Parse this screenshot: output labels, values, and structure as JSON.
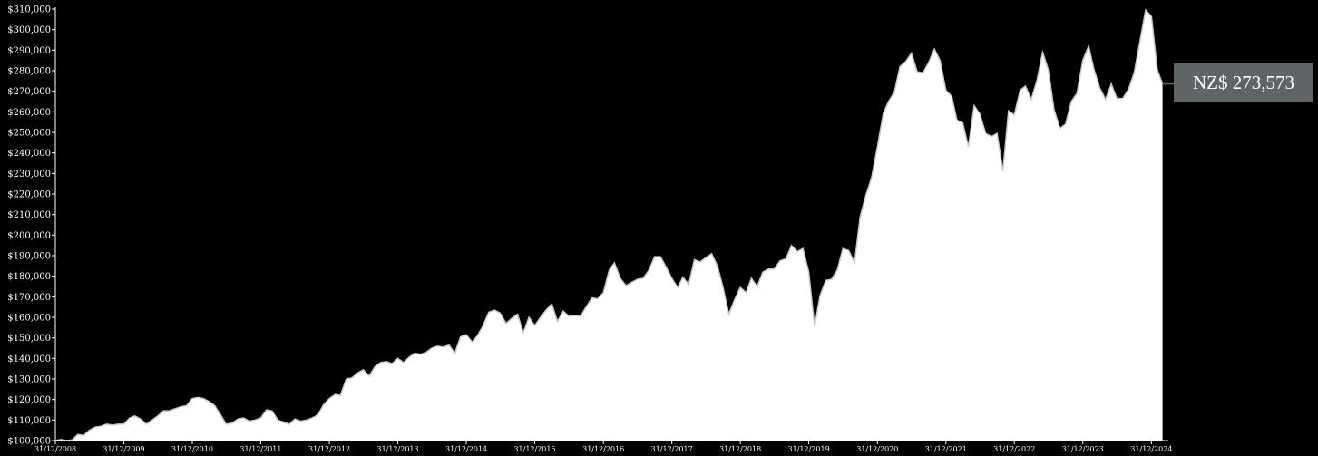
{
  "colors": {
    "background": "#000000",
    "area_fill": "#ffffff",
    "area_stroke": "#c8c8c8",
    "axis": "#ffffff",
    "callout_bg": "#5f6566",
    "callout_text": "#ffffff"
  },
  "callout": {
    "label": "NZ$ 273,573"
  },
  "chart_data": {
    "type": "area",
    "title": "",
    "xlabel": "",
    "ylabel": "",
    "ylim": [
      100000,
      310000
    ],
    "y_ticks": [
      100000,
      110000,
      120000,
      130000,
      140000,
      150000,
      160000,
      170000,
      180000,
      190000,
      200000,
      210000,
      220000,
      230000,
      240000,
      250000,
      260000,
      270000,
      280000,
      290000,
      300000,
      310000
    ],
    "y_tick_labels": [
      "$100,000",
      "$110,000",
      "$120,000",
      "$130,000",
      "$140,000",
      "$150,000",
      "$160,000",
      "$170,000",
      "$180,000",
      "$190,000",
      "$200,000",
      "$210,000",
      "$220,000",
      "$230,000",
      "$240,000",
      "$250,000",
      "$260,000",
      "$270,000",
      "$280,000",
      "$290,000",
      "$300,000",
      "$310,000"
    ],
    "xlim": [
      "2008-12-31",
      "2025-03-31"
    ],
    "x_ticks": [
      "2008-12-31",
      "2009-12-31",
      "2010-12-31",
      "2011-12-31",
      "2012-12-31",
      "2013-12-31",
      "2014-12-31",
      "2015-12-31",
      "2016-12-31",
      "2017-12-31",
      "2018-12-31",
      "2019-12-31",
      "2020-12-31",
      "2021-12-31",
      "2022-12-31",
      "2023-12-31",
      "2024-12-31"
    ],
    "x_tick_labels": [
      "31/12/2008",
      "31/12/2009",
      "31/12/2010",
      "31/12/2011",
      "31/12/2012",
      "31/12/2013",
      "31/12/2014",
      "31/12/2015",
      "31/12/2016",
      "31/12/2017",
      "31/12/2018",
      "31/12/2019",
      "31/12/2020",
      "31/12/2021",
      "31/12/2022",
      "31/12/2023",
      "31/12/2024"
    ],
    "grid": false,
    "series": [
      {
        "points": [
          [
            "2008-12-31",
            100000
          ],
          [
            "2009-01-31",
            100500
          ],
          [
            "2009-02-28",
            100000
          ],
          [
            "2009-03-31",
            100300
          ],
          [
            "2009-04-30",
            103000
          ],
          [
            "2009-05-31",
            102500
          ],
          [
            "2009-06-30",
            105000
          ],
          [
            "2009-07-31",
            106500
          ],
          [
            "2009-08-31",
            107000
          ],
          [
            "2009-09-30",
            108000
          ],
          [
            "2009-10-31",
            107500
          ],
          [
            "2009-11-30",
            108000
          ],
          [
            "2009-12-31",
            108000
          ],
          [
            "2010-01-31",
            111000
          ],
          [
            "2010-02-28",
            112000
          ],
          [
            "2010-03-31",
            110500
          ],
          [
            "2010-04-30",
            108000
          ],
          [
            "2010-05-31",
            110000
          ],
          [
            "2010-06-30",
            112000
          ],
          [
            "2010-07-31",
            114500
          ],
          [
            "2010-08-31",
            114500
          ],
          [
            "2010-09-30",
            115500
          ],
          [
            "2010-10-31",
            116500
          ],
          [
            "2010-11-30",
            117000
          ],
          [
            "2010-12-31",
            120500
          ],
          [
            "2011-01-31",
            121000
          ],
          [
            "2011-02-28",
            120500
          ],
          [
            "2011-03-31",
            119000
          ],
          [
            "2011-04-30",
            117000
          ],
          [
            "2011-05-31",
            112500
          ],
          [
            "2011-06-30",
            108000
          ],
          [
            "2011-07-31",
            108500
          ],
          [
            "2011-08-31",
            110500
          ],
          [
            "2011-09-30",
            111000
          ],
          [
            "2011-10-31",
            109500
          ],
          [
            "2011-11-30",
            110000
          ],
          [
            "2011-12-31",
            111000
          ],
          [
            "2012-01-31",
            115000
          ],
          [
            "2012-02-29",
            114500
          ],
          [
            "2012-03-31",
            110000
          ],
          [
            "2012-04-30",
            109000
          ],
          [
            "2012-05-31",
            108000
          ],
          [
            "2012-06-30",
            110500
          ],
          [
            "2012-07-31",
            109500
          ],
          [
            "2012-08-31",
            110000
          ],
          [
            "2012-09-30",
            111000
          ],
          [
            "2012-10-31",
            112500
          ],
          [
            "2012-11-30",
            117500
          ],
          [
            "2012-12-31",
            120500
          ],
          [
            "2013-01-31",
            122500
          ],
          [
            "2013-02-28",
            122000
          ],
          [
            "2013-03-31",
            130000
          ],
          [
            "2013-04-30",
            130500
          ],
          [
            "2013-05-31",
            133000
          ],
          [
            "2013-06-30",
            134500
          ],
          [
            "2013-07-31",
            131500
          ],
          [
            "2013-08-31",
            136000
          ],
          [
            "2013-09-30",
            138000
          ],
          [
            "2013-10-31",
            138500
          ],
          [
            "2013-11-30",
            137500
          ],
          [
            "2013-12-31",
            140000
          ],
          [
            "2014-01-31",
            138000
          ],
          [
            "2014-02-28",
            140500
          ],
          [
            "2014-03-31",
            142500
          ],
          [
            "2014-04-30",
            142000
          ],
          [
            "2014-05-31",
            143000
          ],
          [
            "2014-06-30",
            145000
          ],
          [
            "2014-07-31",
            146000
          ],
          [
            "2014-08-31",
            145500
          ],
          [
            "2014-09-30",
            146500
          ],
          [
            "2014-10-31",
            142500
          ],
          [
            "2014-11-30",
            150500
          ],
          [
            "2014-12-31",
            151500
          ],
          [
            "2015-01-31",
            148000
          ],
          [
            "2015-02-28",
            151000
          ],
          [
            "2015-03-31",
            156000
          ],
          [
            "2015-04-30",
            162500
          ],
          [
            "2015-05-31",
            163500
          ],
          [
            "2015-06-30",
            162000
          ],
          [
            "2015-07-31",
            157000
          ],
          [
            "2015-08-31",
            159500
          ],
          [
            "2015-09-30",
            161500
          ],
          [
            "2015-10-31",
            152500
          ],
          [
            "2015-11-30",
            160000
          ],
          [
            "2015-12-31",
            156000
          ],
          [
            "2016-01-31",
            160000
          ],
          [
            "2016-02-29",
            163500
          ],
          [
            "2016-03-31",
            166500
          ],
          [
            "2016-04-30",
            158000
          ],
          [
            "2016-05-31",
            163000
          ],
          [
            "2016-06-30",
            160500
          ],
          [
            "2016-07-31",
            161000
          ],
          [
            "2016-08-31",
            160500
          ],
          [
            "2016-09-30",
            165000
          ],
          [
            "2016-10-31",
            169500
          ],
          [
            "2016-11-30",
            169000
          ],
          [
            "2016-12-31",
            172000
          ],
          [
            "2017-01-31",
            183000
          ],
          [
            "2017-02-28",
            186500
          ],
          [
            "2017-03-31",
            179000
          ],
          [
            "2017-04-30",
            175500
          ],
          [
            "2017-05-31",
            177000
          ],
          [
            "2017-06-30",
            178500
          ],
          [
            "2017-07-31",
            179000
          ],
          [
            "2017-08-31",
            183000
          ],
          [
            "2017-09-30",
            189500
          ],
          [
            "2017-10-31",
            189500
          ],
          [
            "2017-11-30",
            184500
          ],
          [
            "2017-12-31",
            179000
          ],
          [
            "2018-01-31",
            174500
          ],
          [
            "2018-02-28",
            179500
          ],
          [
            "2018-03-31",
            176000
          ],
          [
            "2018-04-30",
            188000
          ],
          [
            "2018-05-31",
            187000
          ],
          [
            "2018-06-30",
            189000
          ],
          [
            "2018-07-31",
            191000
          ],
          [
            "2018-08-31",
            185000
          ],
          [
            "2018-09-30",
            174500
          ],
          [
            "2018-10-31",
            161500
          ],
          [
            "2018-11-30",
            168500
          ],
          [
            "2018-12-31",
            174500
          ],
          [
            "2019-01-31",
            172000
          ],
          [
            "2019-02-28",
            179000
          ],
          [
            "2019-03-31",
            175000
          ],
          [
            "2019-04-30",
            182000
          ],
          [
            "2019-05-31",
            183500
          ],
          [
            "2019-06-30",
            183500
          ],
          [
            "2019-07-31",
            187500
          ],
          [
            "2019-08-31",
            188500
          ],
          [
            "2019-09-30",
            195000
          ],
          [
            "2019-10-31",
            192000
          ],
          [
            "2019-11-30",
            193500
          ],
          [
            "2019-12-31",
            182000
          ],
          [
            "2020-01-31",
            155500
          ],
          [
            "2020-02-29",
            170500
          ],
          [
            "2020-03-31",
            178000
          ],
          [
            "2020-04-30",
            178500
          ],
          [
            "2020-05-31",
            183000
          ],
          [
            "2020-06-30",
            193500
          ],
          [
            "2020-07-31",
            192500
          ],
          [
            "2020-08-31",
            186500
          ],
          [
            "2020-09-30",
            209000
          ],
          [
            "2020-10-31",
            219500
          ],
          [
            "2020-11-30",
            228000
          ],
          [
            "2020-12-31",
            243000
          ],
          [
            "2021-01-31",
            259000
          ],
          [
            "2021-02-28",
            265000
          ],
          [
            "2021-03-31",
            269500
          ],
          [
            "2021-04-30",
            282000
          ],
          [
            "2021-05-31",
            284500
          ],
          [
            "2021-06-30",
            288500
          ],
          [
            "2021-07-31",
            279500
          ],
          [
            "2021-08-31",
            279000
          ],
          [
            "2021-09-30",
            284000
          ],
          [
            "2021-10-31",
            290500
          ],
          [
            "2021-11-30",
            285000
          ],
          [
            "2021-12-31",
            270500
          ],
          [
            "2022-01-31",
            267500
          ],
          [
            "2022-02-28",
            256000
          ],
          [
            "2022-03-31",
            254500
          ],
          [
            "2022-04-30",
            243000
          ],
          [
            "2022-05-31",
            263000
          ],
          [
            "2022-06-30",
            259000
          ],
          [
            "2022-07-31",
            249500
          ],
          [
            "2022-08-31",
            248000
          ],
          [
            "2022-09-30",
            249500
          ],
          [
            "2022-10-31",
            231000
          ],
          [
            "2022-11-30",
            260500
          ],
          [
            "2022-12-31",
            258500
          ],
          [
            "2023-01-31",
            270500
          ],
          [
            "2023-02-28",
            272500
          ],
          [
            "2023-03-31",
            266000
          ],
          [
            "2023-04-30",
            275000
          ],
          [
            "2023-05-31",
            289000
          ],
          [
            "2023-06-30",
            280500
          ],
          [
            "2023-07-31",
            261000
          ],
          [
            "2023-08-31",
            252000
          ],
          [
            "2023-09-30",
            254000
          ],
          [
            "2023-10-31",
            265000
          ],
          [
            "2023-11-30",
            269000
          ],
          [
            "2023-12-31",
            285000
          ],
          [
            "2024-01-31",
            292000
          ],
          [
            "2024-02-29",
            280500
          ],
          [
            "2024-03-31",
            271500
          ],
          [
            "2024-04-30",
            266000
          ],
          [
            "2024-05-31",
            273500
          ],
          [
            "2024-06-30",
            266500
          ],
          [
            "2024-07-31",
            266500
          ],
          [
            "2024-08-31",
            271000
          ],
          [
            "2024-09-30",
            279000
          ],
          [
            "2024-10-31",
            294500
          ],
          [
            "2024-11-30",
            309500
          ],
          [
            "2024-12-31",
            306500
          ],
          [
            "2025-01-31",
            280500
          ],
          [
            "2025-02-28",
            273573
          ]
        ]
      }
    ]
  }
}
